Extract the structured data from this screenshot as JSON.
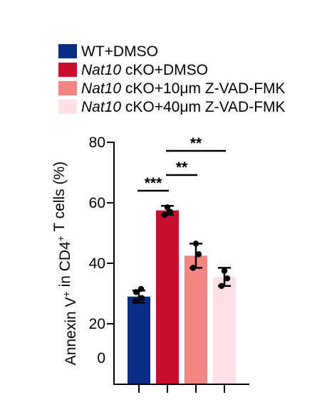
{
  "chart_data": {
    "type": "bar",
    "title": "",
    "xlabel": "",
    "ylabel": "Annexin V+ in CD4+ T cells (%)",
    "ylabel_parts": {
      "prefix": "Annexin V",
      "sup1": "+",
      "middle": " in CD4",
      "sup2": "+",
      "suffix": " T cells (%)"
    },
    "ylim": [
      0,
      80
    ],
    "yticks": [
      "0",
      "20",
      "40",
      "60",
      "80"
    ],
    "grid": false,
    "legend_position": "top-left",
    "series": [
      {
        "name": "WT+DMSO",
        "name_italic": "",
        "name_rest": "WT+DMSO",
        "color": "#0a2d87",
        "mean": 29,
        "sd": 2,
        "points": [
          27.5,
          28.5,
          30.5,
          31.5
        ]
      },
      {
        "name": "Nat10 cKO+DMSO",
        "name_italic": "Nat10",
        "name_rest": " cKO+DMSO",
        "color": "#c8102e",
        "mean": 57.5,
        "sd": 1.5,
        "points": [
          56,
          57,
          58.5
        ]
      },
      {
        "name": "Nat10 cKO+10μm Z-VAD-FMK",
        "name_italic": "Nat10",
        "name_rest": " cKO+10μm Z-VAD-FMK",
        "color": "#f48585",
        "mean": 42.5,
        "sd": 4,
        "points": [
          38.5,
          43,
          46.5
        ]
      },
      {
        "name": "Nat10 cKO+40μm Z-VAD-FMK",
        "name_italic": "Nat10",
        "name_rest": " cKO+40μm Z-VAD-FMK",
        "color": "#fde0e3",
        "mean": 35.5,
        "sd": 3,
        "points": [
          32.5,
          35,
          37.5
        ]
      }
    ],
    "significance": [
      {
        "from": 0,
        "to": 1,
        "label": "***"
      },
      {
        "from": 1,
        "to": 2,
        "label": "**"
      },
      {
        "from": 1,
        "to": 3,
        "label": "**"
      }
    ]
  }
}
